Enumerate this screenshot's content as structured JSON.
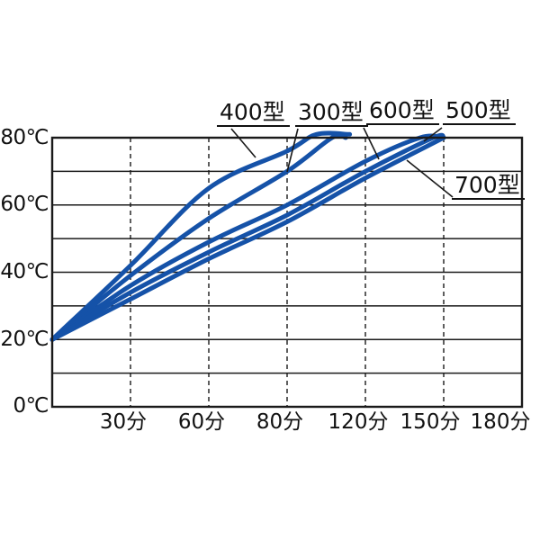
{
  "figure": {
    "background": "#ffffff",
    "line_color": "#1552a8",
    "axis_color": "#1a1a1a"
  },
  "y_axis": {
    "ticks": [
      "80℃",
      "60℃",
      "40℃",
      "20℃",
      "0℃"
    ]
  },
  "x_axis": {
    "ticks": [
      "30分",
      "60分",
      "80分",
      "120分",
      "150分",
      "180分"
    ]
  },
  "chart_data": {
    "type": "line",
    "title": "",
    "xlabel": "",
    "ylabel": "",
    "x_tick_labels": [
      "30分",
      "60分",
      "80分",
      "120分",
      "150分",
      "180分"
    ],
    "x_tick_values": [
      30,
      60,
      80,
      120,
      150,
      180
    ],
    "y_tick_labels": [
      "0℃",
      "20℃",
      "40℃",
      "60℃",
      "80℃"
    ],
    "y_tick_values": [
      0,
      20,
      40,
      60,
      80
    ],
    "xlim": [
      0,
      180
    ],
    "ylim": [
      0,
      80
    ],
    "grid": "horizontal solid lines every 10°C; vertical dashed lines at x ticks",
    "legend_position": "labels with leader lines pointing to curves",
    "line_color": "#1552a8",
    "series": [
      {
        "name": "400型",
        "points": [
          [
            0,
            20
          ],
          [
            30,
            42
          ],
          [
            60,
            65
          ],
          [
            80,
            76
          ],
          [
            95,
            81
          ],
          [
            112,
            81
          ]
        ]
      },
      {
        "name": "300型",
        "points": [
          [
            0,
            20
          ],
          [
            30,
            39
          ],
          [
            60,
            56
          ],
          [
            80,
            70
          ],
          [
            103,
            80
          ],
          [
            110,
            80
          ]
        ]
      },
      {
        "name": "600型",
        "points": [
          [
            0,
            20
          ],
          [
            30,
            36
          ],
          [
            60,
            49
          ],
          [
            80,
            60
          ],
          [
            120,
            73
          ],
          [
            141,
            80
          ],
          [
            150,
            80
          ]
        ]
      },
      {
        "name": "500型",
        "points": [
          [
            0,
            20
          ],
          [
            30,
            34
          ],
          [
            60,
            46
          ],
          [
            80,
            57
          ],
          [
            120,
            70
          ],
          [
            146,
            80
          ],
          [
            150,
            80
          ]
        ]
      },
      {
        "name": "700型",
        "points": [
          [
            0,
            20
          ],
          [
            30,
            32
          ],
          [
            60,
            44
          ],
          [
            80,
            55
          ],
          [
            120,
            68
          ],
          [
            150,
            80
          ]
        ]
      }
    ]
  }
}
